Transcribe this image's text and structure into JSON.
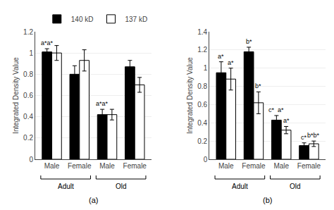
{
  "chart_data": [
    {
      "type": "bar",
      "title": "(a)",
      "ylabel": "Integrated Density Value",
      "categories": [
        "Male",
        "Female",
        "Male",
        "Female"
      ],
      "groups": [
        {
          "label": "Adult",
          "categories": [
            0,
            1
          ]
        },
        {
          "label": "Old",
          "categories": [
            2,
            3
          ]
        }
      ],
      "series": [
        {
          "name": "140 kD",
          "color": "#000000",
          "values": [
            1.01,
            0.8,
            0.42,
            0.87
          ],
          "errors": [
            0.03,
            0.08,
            0.05,
            0.06
          ]
        },
        {
          "name": "137 kD",
          "color": "#ffffff",
          "values": [
            1.0,
            0.93,
            0.42,
            0.7
          ],
          "errors": [
            0.07,
            0.1,
            0.05,
            0.07
          ]
        }
      ],
      "annotations": [
        {
          "text": "a*a*",
          "category": 0,
          "series": 0
        },
        {
          "text": "a*a*",
          "category": 2,
          "series": 0
        }
      ],
      "ylim": [
        0,
        1.2
      ],
      "yticks": [
        0,
        0.2,
        0.4,
        0.6,
        0.8,
        1.0,
        1.2
      ],
      "grid": true,
      "legend": "upper right"
    },
    {
      "type": "bar",
      "title": "(b)",
      "ylabel": "Integrated Density Value",
      "categories": [
        "Male",
        "Female",
        "Male",
        "Female"
      ],
      "groups": [
        {
          "label": "Adult",
          "categories": [
            0,
            1
          ]
        },
        {
          "label": "Old",
          "categories": [
            2,
            3
          ]
        }
      ],
      "series": [
        {
          "color": "#000000",
          "values": [
            0.95,
            1.18,
            0.43,
            0.15
          ],
          "errors": [
            0.12,
            0.05,
            0.05,
            0.03
          ]
        },
        {
          "color": "#ffffff",
          "values": [
            0.88,
            0.62,
            0.32,
            0.17
          ],
          "errors": [
            0.12,
            0.12,
            0.04,
            0.03
          ]
        }
      ],
      "annotations": [
        {
          "text": "a*",
          "category": 0,
          "series": 0
        },
        {
          "text": "a*",
          "category": 0,
          "series": 1
        },
        {
          "text": "b*",
          "category": 1,
          "series": 0
        },
        {
          "text": "b*",
          "category": 1,
          "series": 1
        },
        {
          "text": "c*",
          "category": 2,
          "series": 0
        },
        {
          "text": "a*",
          "category": 2,
          "series": 0
        },
        {
          "text": "a*",
          "category": 2,
          "series": 1
        },
        {
          "text": "c*",
          "category": 3,
          "series": 0
        },
        {
          "text": "b*b*",
          "category": 3,
          "series": 1
        }
      ],
      "ylim": [
        0,
        1.4
      ],
      "yticks": [
        0,
        0.2,
        0.4,
        0.6,
        0.8,
        1.0,
        1.2,
        1.4
      ],
      "grid": true
    }
  ]
}
